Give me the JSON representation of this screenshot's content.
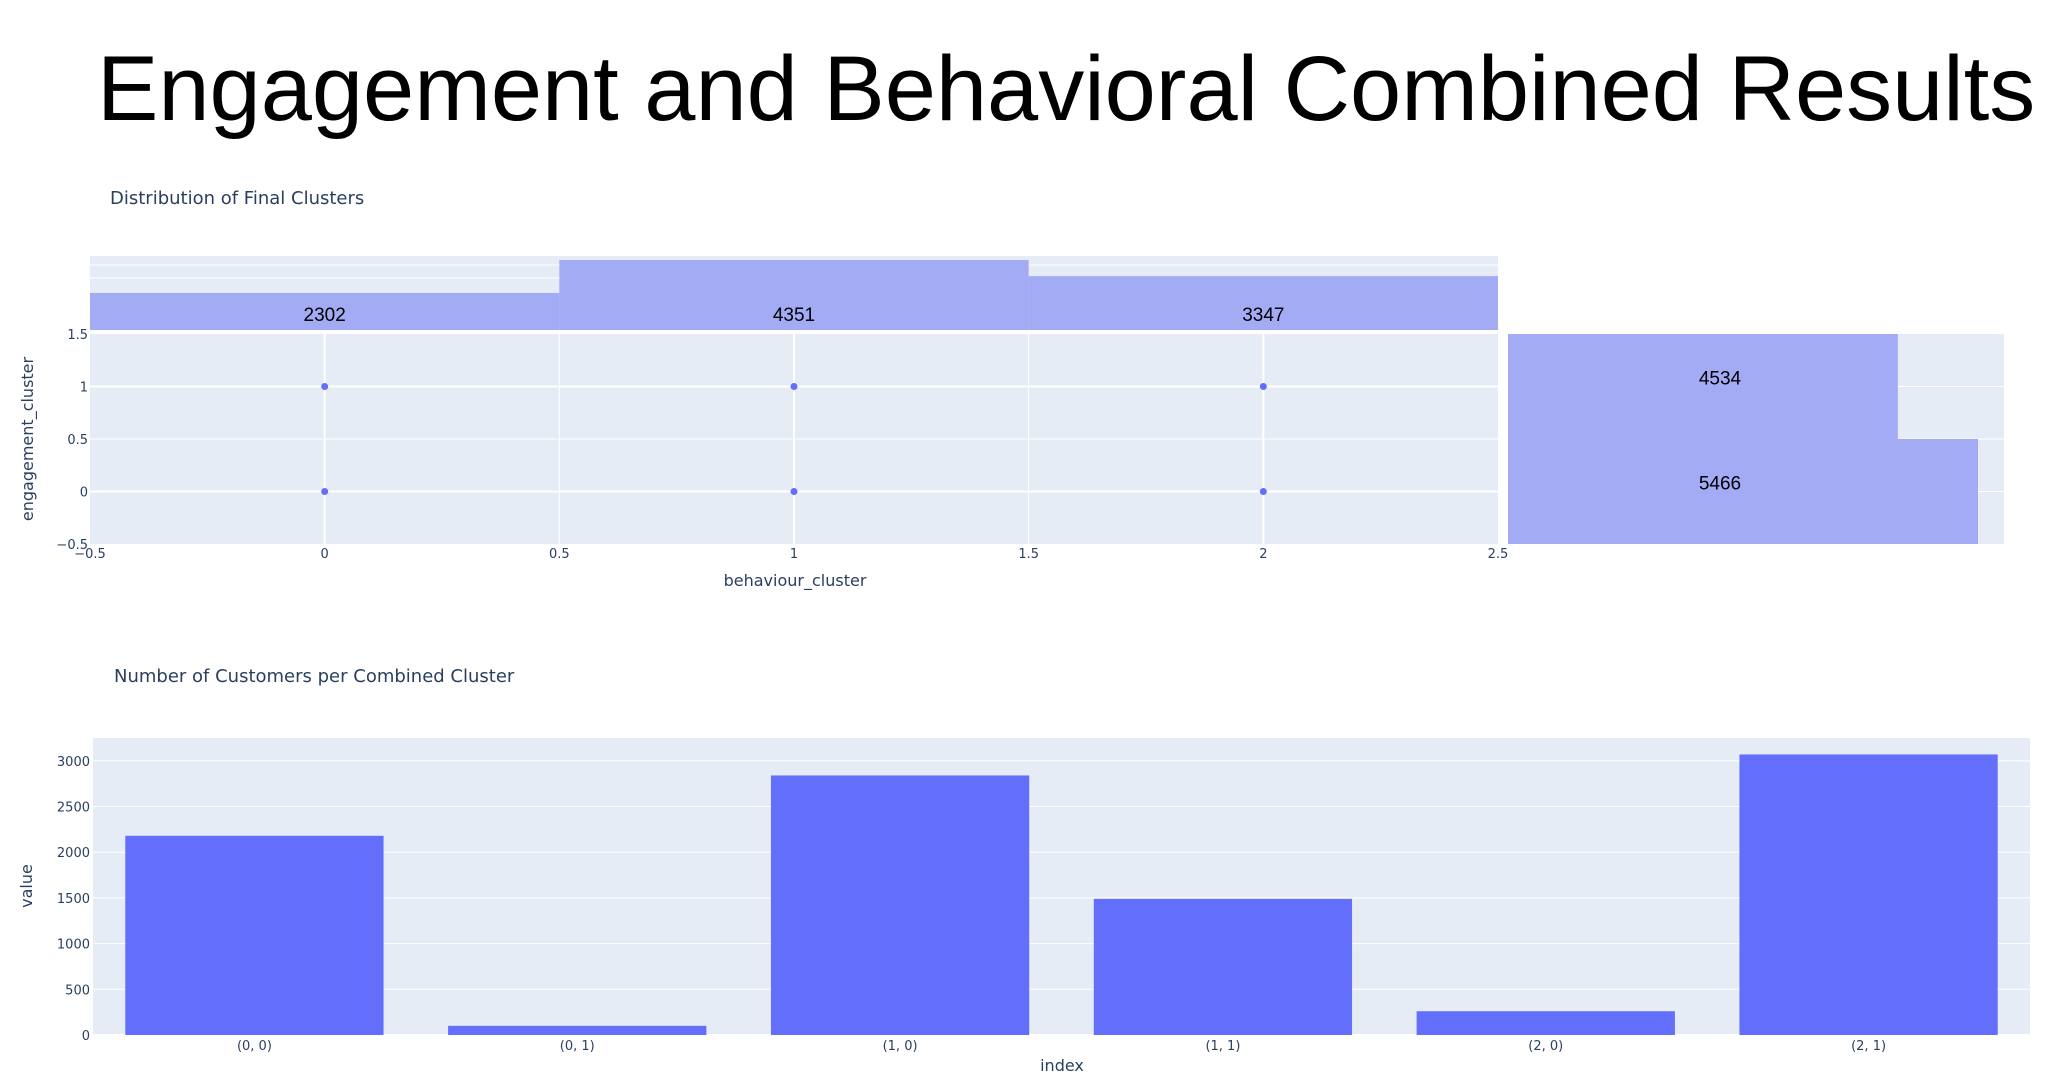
{
  "slide": {
    "title": "Engagement and Behavioral Combined Results"
  },
  "colors": {
    "plot_bg": "#e5ecf6",
    "grid": "#ffffff",
    "bar": "#636efa",
    "hist": "#a3abf5",
    "text": "#2a3f5f"
  },
  "chart_data": [
    {
      "type": "scatter",
      "title": "Distribution of Final Clusters",
      "xlabel": "behaviour_cluster",
      "ylabel": "engagement_cluster",
      "xlim": [
        -0.5,
        2.5
      ],
      "ylim": [
        -0.5,
        1.5
      ],
      "x_ticks": [
        "−0.5",
        "0",
        "0.5",
        "1",
        "1.5",
        "2",
        "2.5"
      ],
      "y_ticks": [
        "−0.5",
        "0",
        "0.5",
        "1",
        "1.5"
      ],
      "points": [
        {
          "x": 0,
          "y": 0
        },
        {
          "x": 0,
          "y": 1
        },
        {
          "x": 1,
          "y": 0
        },
        {
          "x": 1,
          "y": 1
        },
        {
          "x": 2,
          "y": 0
        },
        {
          "x": 2,
          "y": 1
        }
      ],
      "marginal_x": {
        "type": "bar",
        "categories": [
          0,
          1,
          2
        ],
        "values": [
          2302,
          4351,
          3347
        ],
        "labels": [
          "2302",
          "4351",
          "3347"
        ]
      },
      "marginal_y": {
        "type": "bar",
        "orientation": "horizontal",
        "categories": [
          0,
          1
        ],
        "values": [
          5466,
          4534
        ],
        "labels": [
          "5466",
          "4534"
        ]
      },
      "grid": true
    },
    {
      "type": "bar",
      "title": "Number of Customers per Combined Cluster",
      "xlabel": "index",
      "ylabel": "value",
      "categories": [
        "(0, 0)",
        "(0, 1)",
        "(1, 0)",
        "(1, 1)",
        "(2, 0)",
        "(2, 1)"
      ],
      "values": [
        2180,
        100,
        2840,
        1490,
        260,
        3070
      ],
      "ylim": [
        0,
        3250
      ],
      "y_ticks": [
        0,
        500,
        1000,
        1500,
        2000,
        2500,
        3000
      ],
      "grid": true
    }
  ]
}
